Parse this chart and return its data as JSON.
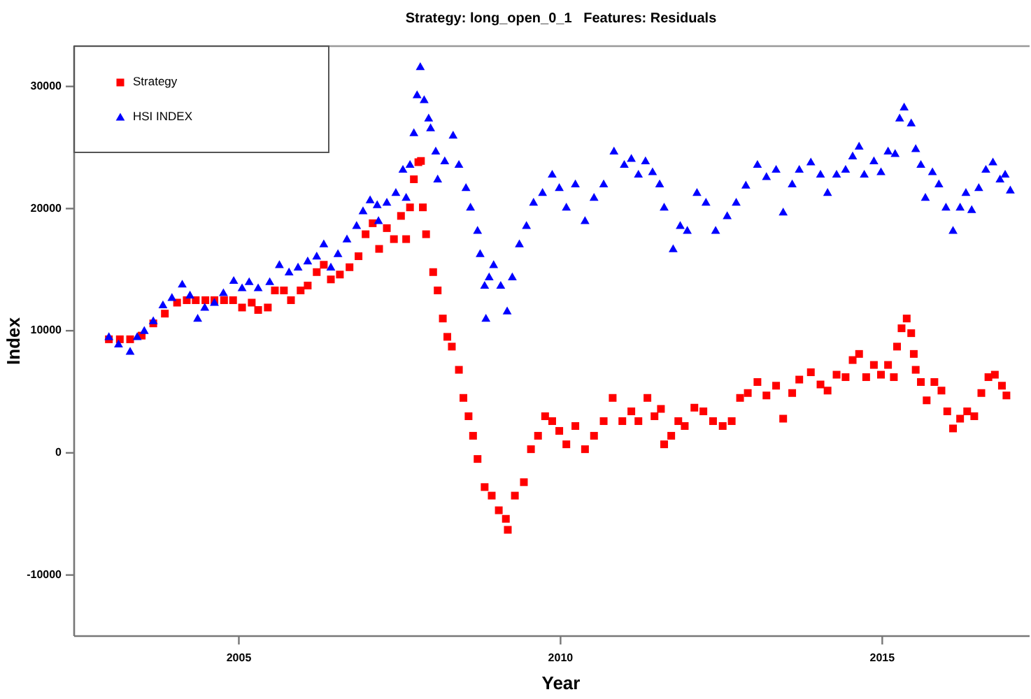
{
  "chart_data": {
    "type": "scatter",
    "title": "Strategy: long_open_0_1   Features: Residuals",
    "xlabel": "Year",
    "ylabel": "Index",
    "xlim": [
      2002.44,
      2017.29
    ],
    "xticks": [
      2005,
      2010,
      2015
    ],
    "ylim": [
      -15000,
      33300
    ],
    "yticks": [
      -10000,
      0,
      10000,
      20000,
      30000
    ],
    "legend": "top left",
    "series": [
      {
        "name": "Strategy",
        "color": "#ff0000",
        "marker": "square",
        "x": [
          2002.98,
          2003.15,
          2003.31,
          2003.49,
          2003.67,
          2003.85,
          2004.04,
          2004.19,
          2004.33,
          2004.48,
          2004.62,
          2004.77,
          2004.91,
          2005.05,
          2005.2,
          2005.3,
          2005.45,
          2005.56,
          2005.7,
          2005.81,
          2005.96,
          2006.07,
          2006.21,
          2006.32,
          2006.43,
          2006.57,
          2006.72,
          2006.86,
          2006.97,
          2007.08,
          2007.18,
          2007.3,
          2007.41,
          2007.52,
          2007.6,
          2007.66,
          2007.72,
          2007.79,
          2007.83,
          2007.86,
          2007.91,
          2008.02,
          2008.09,
          2008.17,
          2008.24,
          2008.31,
          2008.42,
          2008.49,
          2008.57,
          2008.64,
          2008.71,
          2008.82,
          2008.93,
          2009.04,
          2009.15,
          2009.18,
          2009.29,
          2009.43,
          2009.54,
          2009.65,
          2009.76,
          2009.87,
          2009.98,
          2010.09,
          2010.23,
          2010.38,
          2010.52,
          2010.67,
          2010.81,
          2010.96,
          2011.1,
          2011.21,
          2011.35,
          2011.46,
          2011.56,
          2011.61,
          2011.72,
          2011.83,
          2011.93,
          2012.08,
          2012.22,
          2012.37,
          2012.52,
          2012.66,
          2012.79,
          2012.91,
          2013.06,
          2013.2,
          2013.35,
          2013.46,
          2013.6,
          2013.71,
          2013.89,
          2014.04,
          2014.15,
          2014.29,
          2014.43,
          2014.54,
          2014.64,
          2014.75,
          2014.87,
          2014.98,
          2015.09,
          2015.18,
          2015.23,
          2015.3,
          2015.38,
          2015.45,
          2015.49,
          2015.52,
          2015.6,
          2015.69,
          2015.81,
          2015.92,
          2016.01,
          2016.1,
          2016.21,
          2016.32,
          2016.43,
          2016.54,
          2016.65,
          2016.75,
          2016.86,
          2016.93
        ],
        "values": [
          9300,
          9300,
          9300,
          9600,
          10600,
          11400,
          12300,
          12500,
          12500,
          12500,
          12500,
          12500,
          12500,
          11900,
          12300,
          11700,
          11900,
          13300,
          13300,
          12500,
          13300,
          13700,
          14800,
          15400,
          14200,
          14600,
          15200,
          16100,
          17900,
          18800,
          16700,
          18400,
          17500,
          19400,
          17500,
          20100,
          22400,
          23800,
          23900,
          20100,
          17900,
          14800,
          13300,
          11000,
          9500,
          8700,
          6800,
          4500,
          3000,
          1400,
          -500,
          -2800,
          -3500,
          -4700,
          -5400,
          -6300,
          -3500,
          -2400,
          300,
          1400,
          3000,
          2600,
          1800,
          700,
          2200,
          300,
          1400,
          2600,
          4500,
          2600,
          3400,
          2600,
          4500,
          3000,
          3600,
          700,
          1400,
          2600,
          2200,
          3700,
          3400,
          2600,
          2200,
          2600,
          4500,
          4900,
          5800,
          4700,
          5500,
          2800,
          4900,
          6000,
          6600,
          5600,
          5100,
          6400,
          6200,
          7600,
          8100,
          6200,
          7200,
          6400,
          7200,
          6200,
          8700,
          10200,
          11000,
          9800,
          8100,
          6800,
          5800,
          4300,
          5800,
          5100,
          3400,
          2000,
          2800,
          3400,
          3000,
          4900,
          6200,
          6400,
          5500,
          4700
        ]
      },
      {
        "name": "HSI INDEX",
        "color": "#0000ff",
        "marker": "triangle",
        "x": [
          2002.98,
          2003.13,
          2003.31,
          2003.42,
          2003.53,
          2003.67,
          2003.82,
          2003.96,
          2004.12,
          2004.24,
          2004.36,
          2004.47,
          2004.62,
          2004.76,
          2004.92,
          2005.05,
          2005.16,
          2005.3,
          2005.48,
          2005.63,
          2005.78,
          2005.92,
          2006.07,
          2006.21,
          2006.32,
          2006.43,
          2006.54,
          2006.68,
          2006.83,
          2006.93,
          2007.04,
          2007.15,
          2007.17,
          2007.3,
          2007.44,
          2007.55,
          2007.6,
          2007.66,
          2007.72,
          2007.77,
          2007.82,
          2007.88,
          2007.95,
          2007.98,
          2008.06,
          2008.09,
          2008.2,
          2008.33,
          2008.42,
          2008.53,
          2008.6,
          2008.71,
          2008.75,
          2008.82,
          2008.84,
          2008.89,
          2008.96,
          2009.07,
          2009.17,
          2009.25,
          2009.36,
          2009.47,
          2009.58,
          2009.72,
          2009.87,
          2009.98,
          2010.09,
          2010.23,
          2010.38,
          2010.52,
          2010.67,
          2010.83,
          2010.99,
          2011.1,
          2011.21,
          2011.32,
          2011.43,
          2011.54,
          2011.61,
          2011.75,
          2011.86,
          2011.97,
          2012.12,
          2012.26,
          2012.41,
          2012.59,
          2012.73,
          2012.88,
          2013.06,
          2013.2,
          2013.35,
          2013.46,
          2013.6,
          2013.71,
          2013.89,
          2014.04,
          2014.15,
          2014.29,
          2014.43,
          2014.54,
          2014.64,
          2014.72,
          2014.87,
          2014.98,
          2015.09,
          2015.2,
          2015.27,
          2015.34,
          2015.45,
          2015.52,
          2015.6,
          2015.67,
          2015.78,
          2015.88,
          2015.99,
          2016.1,
          2016.21,
          2016.3,
          2016.39,
          2016.5,
          2016.61,
          2016.72,
          2016.83,
          2016.91,
          2016.99
        ],
        "values": [
          9500,
          8900,
          8300,
          9500,
          10000,
          10800,
          12100,
          12700,
          13800,
          12900,
          11000,
          11900,
          12300,
          13100,
          14100,
          13500,
          14000,
          13500,
          14000,
          15400,
          14800,
          15200,
          15700,
          16100,
          17100,
          15200,
          16300,
          17500,
          18600,
          19800,
          20700,
          20300,
          19000,
          20500,
          21300,
          23200,
          20900,
          23600,
          26200,
          29300,
          31600,
          28900,
          27400,
          26600,
          24700,
          22400,
          23900,
          26000,
          23600,
          21700,
          20100,
          18200,
          16300,
          13700,
          11000,
          14400,
          15400,
          13700,
          11600,
          14400,
          17100,
          18600,
          20500,
          21300,
          22800,
          21700,
          20100,
          22000,
          19000,
          20900,
          22000,
          24700,
          23600,
          24100,
          22800,
          23900,
          23000,
          22000,
          20100,
          16700,
          18600,
          18200,
          21300,
          20500,
          18200,
          19400,
          20500,
          21900,
          23600,
          22600,
          23200,
          19700,
          22000,
          23200,
          23800,
          22800,
          21300,
          22800,
          23200,
          24300,
          25100,
          22800,
          23900,
          23000,
          24700,
          24500,
          27400,
          28300,
          27000,
          24900,
          23600,
          20900,
          23000,
          22000,
          20100,
          18200,
          20100,
          21300,
          19900,
          21700,
          23200,
          23800,
          22400,
          22800,
          21500
        ]
      }
    ]
  }
}
